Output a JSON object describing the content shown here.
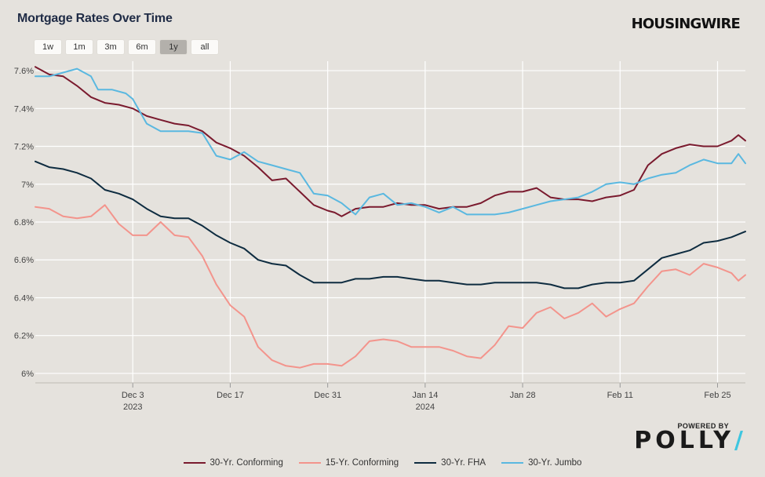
{
  "header": {
    "title": "Mortgage Rates Over Time",
    "brand": "HOUSINGWIRE"
  },
  "range_buttons": [
    {
      "label": "1w",
      "active": false
    },
    {
      "label": "1m",
      "active": false
    },
    {
      "label": "3m",
      "active": false
    },
    {
      "label": "6m",
      "active": false
    },
    {
      "label": "1y",
      "active": true
    },
    {
      "label": "all",
      "active": false
    }
  ],
  "footer": {
    "powered_by": "POWERED BY",
    "logo_text": "POLLY",
    "logo_slash": "/"
  },
  "chart_data": {
    "type": "line",
    "title": "Mortgage Rates Over Time",
    "xlabel": "",
    "ylabel": "",
    "x_range": [
      "2023-11-19",
      "2024-02-29"
    ],
    "ylim": [
      5.95,
      7.65
    ],
    "grid": true,
    "legend_position": "bottom",
    "y_ticks": [
      {
        "value": 6.0,
        "label": "6%"
      },
      {
        "value": 6.2,
        "label": "6.2%"
      },
      {
        "value": 6.4,
        "label": "6.4%"
      },
      {
        "value": 6.6,
        "label": "6.6%"
      },
      {
        "value": 6.8,
        "label": "6.8%"
      },
      {
        "value": 7.0,
        "label": "7%"
      },
      {
        "value": 7.2,
        "label": "7.2%"
      },
      {
        "value": 7.4,
        "label": "7.4%"
      },
      {
        "value": 7.6,
        "label": "7.6%"
      }
    ],
    "x_ticks": [
      {
        "date": "2023-12-03",
        "label": "Dec 3",
        "sublabel": "2023"
      },
      {
        "date": "2023-12-17",
        "label": "Dec 17",
        "sublabel": ""
      },
      {
        "date": "2023-12-31",
        "label": "Dec 31",
        "sublabel": ""
      },
      {
        "date": "2024-01-14",
        "label": "Jan 14",
        "sublabel": "2024"
      },
      {
        "date": "2024-01-28",
        "label": "Jan 28",
        "sublabel": ""
      },
      {
        "date": "2024-02-11",
        "label": "Feb 11",
        "sublabel": ""
      },
      {
        "date": "2024-02-25",
        "label": "Feb 25",
        "sublabel": ""
      }
    ],
    "series": [
      {
        "name": "30-Yr. Conforming",
        "color": "#7a1a2e",
        "points": [
          [
            "2023-11-19",
            7.62
          ],
          [
            "2023-11-21",
            7.58
          ],
          [
            "2023-11-23",
            7.57
          ],
          [
            "2023-11-25",
            7.52
          ],
          [
            "2023-11-27",
            7.46
          ],
          [
            "2023-11-29",
            7.43
          ],
          [
            "2023-12-01",
            7.42
          ],
          [
            "2023-12-03",
            7.4
          ],
          [
            "2023-12-05",
            7.36
          ],
          [
            "2023-12-07",
            7.34
          ],
          [
            "2023-12-09",
            7.32
          ],
          [
            "2023-12-11",
            7.31
          ],
          [
            "2023-12-13",
            7.28
          ],
          [
            "2023-12-15",
            7.22
          ],
          [
            "2023-12-17",
            7.19
          ],
          [
            "2023-12-19",
            7.15
          ],
          [
            "2023-12-21",
            7.09
          ],
          [
            "2023-12-23",
            7.02
          ],
          [
            "2023-12-25",
            7.03
          ],
          [
            "2023-12-27",
            6.96
          ],
          [
            "2023-12-29",
            6.89
          ],
          [
            "2023-12-31",
            6.86
          ],
          [
            "2024-01-01",
            6.85
          ],
          [
            "2024-01-02",
            6.83
          ],
          [
            "2024-01-04",
            6.87
          ],
          [
            "2024-01-06",
            6.88
          ],
          [
            "2024-01-08",
            6.88
          ],
          [
            "2024-01-10",
            6.9
          ],
          [
            "2024-01-12",
            6.89
          ],
          [
            "2024-01-14",
            6.89
          ],
          [
            "2024-01-16",
            6.87
          ],
          [
            "2024-01-18",
            6.88
          ],
          [
            "2024-01-20",
            6.88
          ],
          [
            "2024-01-22",
            6.9
          ],
          [
            "2024-01-24",
            6.94
          ],
          [
            "2024-01-26",
            6.96
          ],
          [
            "2024-01-28",
            6.96
          ],
          [
            "2024-01-30",
            6.98
          ],
          [
            "2024-02-01",
            6.93
          ],
          [
            "2024-02-03",
            6.92
          ],
          [
            "2024-02-05",
            6.92
          ],
          [
            "2024-02-07",
            6.91
          ],
          [
            "2024-02-09",
            6.93
          ],
          [
            "2024-02-11",
            6.94
          ],
          [
            "2024-02-13",
            6.97
          ],
          [
            "2024-02-15",
            7.1
          ],
          [
            "2024-02-17",
            7.16
          ],
          [
            "2024-02-19",
            7.19
          ],
          [
            "2024-02-21",
            7.21
          ],
          [
            "2024-02-23",
            7.2
          ],
          [
            "2024-02-25",
            7.2
          ],
          [
            "2024-02-27",
            7.23
          ],
          [
            "2024-02-28",
            7.26
          ],
          [
            "2024-02-29",
            7.23
          ]
        ]
      },
      {
        "name": "15-Yr. Conforming",
        "color": "#f3948c",
        "points": [
          [
            "2023-11-19",
            6.88
          ],
          [
            "2023-11-21",
            6.87
          ],
          [
            "2023-11-23",
            6.83
          ],
          [
            "2023-11-25",
            6.82
          ],
          [
            "2023-11-27",
            6.83
          ],
          [
            "2023-11-29",
            6.89
          ],
          [
            "2023-12-01",
            6.79
          ],
          [
            "2023-12-03",
            6.73
          ],
          [
            "2023-12-05",
            6.73
          ],
          [
            "2023-12-07",
            6.8
          ],
          [
            "2023-12-09",
            6.73
          ],
          [
            "2023-12-11",
            6.72
          ],
          [
            "2023-12-13",
            6.62
          ],
          [
            "2023-12-15",
            6.47
          ],
          [
            "2023-12-17",
            6.36
          ],
          [
            "2023-12-19",
            6.3
          ],
          [
            "2023-12-21",
            6.14
          ],
          [
            "2023-12-23",
            6.07
          ],
          [
            "2023-12-25",
            6.04
          ],
          [
            "2023-12-27",
            6.03
          ],
          [
            "2023-12-29",
            6.05
          ],
          [
            "2023-12-31",
            6.05
          ],
          [
            "2024-01-02",
            6.04
          ],
          [
            "2024-01-04",
            6.09
          ],
          [
            "2024-01-06",
            6.17
          ],
          [
            "2024-01-08",
            6.18
          ],
          [
            "2024-01-10",
            6.17
          ],
          [
            "2024-01-12",
            6.14
          ],
          [
            "2024-01-14",
            6.14
          ],
          [
            "2024-01-16",
            6.14
          ],
          [
            "2024-01-18",
            6.12
          ],
          [
            "2024-01-20",
            6.09
          ],
          [
            "2024-01-22",
            6.08
          ],
          [
            "2024-01-24",
            6.15
          ],
          [
            "2024-01-26",
            6.25
          ],
          [
            "2024-01-28",
            6.24
          ],
          [
            "2024-01-30",
            6.32
          ],
          [
            "2024-02-01",
            6.35
          ],
          [
            "2024-02-03",
            6.29
          ],
          [
            "2024-02-05",
            6.32
          ],
          [
            "2024-02-07",
            6.37
          ],
          [
            "2024-02-09",
            6.3
          ],
          [
            "2024-02-11",
            6.34
          ],
          [
            "2024-02-13",
            6.37
          ],
          [
            "2024-02-15",
            6.46
          ],
          [
            "2024-02-17",
            6.54
          ],
          [
            "2024-02-19",
            6.55
          ],
          [
            "2024-02-21",
            6.52
          ],
          [
            "2024-02-23",
            6.58
          ],
          [
            "2024-02-25",
            6.56
          ],
          [
            "2024-02-27",
            6.53
          ],
          [
            "2024-02-28",
            6.49
          ],
          [
            "2024-02-29",
            6.52
          ]
        ]
      },
      {
        "name": "30-Yr. FHA",
        "color": "#0e2c40",
        "points": [
          [
            "2023-11-19",
            7.12
          ],
          [
            "2023-11-21",
            7.09
          ],
          [
            "2023-11-23",
            7.08
          ],
          [
            "2023-11-25",
            7.06
          ],
          [
            "2023-11-27",
            7.03
          ],
          [
            "2023-11-29",
            6.97
          ],
          [
            "2023-12-01",
            6.95
          ],
          [
            "2023-12-03",
            6.92
          ],
          [
            "2023-12-05",
            6.87
          ],
          [
            "2023-12-07",
            6.83
          ],
          [
            "2023-12-09",
            6.82
          ],
          [
            "2023-12-11",
            6.82
          ],
          [
            "2023-12-13",
            6.78
          ],
          [
            "2023-12-15",
            6.73
          ],
          [
            "2023-12-17",
            6.69
          ],
          [
            "2023-12-19",
            6.66
          ],
          [
            "2023-12-21",
            6.6
          ],
          [
            "2023-12-23",
            6.58
          ],
          [
            "2023-12-25",
            6.57
          ],
          [
            "2023-12-27",
            6.52
          ],
          [
            "2023-12-29",
            6.48
          ],
          [
            "2023-12-31",
            6.48
          ],
          [
            "2024-01-02",
            6.48
          ],
          [
            "2024-01-04",
            6.5
          ],
          [
            "2024-01-06",
            6.5
          ],
          [
            "2024-01-08",
            6.51
          ],
          [
            "2024-01-10",
            6.51
          ],
          [
            "2024-01-12",
            6.5
          ],
          [
            "2024-01-14",
            6.49
          ],
          [
            "2024-01-16",
            6.49
          ],
          [
            "2024-01-18",
            6.48
          ],
          [
            "2024-01-20",
            6.47
          ],
          [
            "2024-01-22",
            6.47
          ],
          [
            "2024-01-24",
            6.48
          ],
          [
            "2024-01-26",
            6.48
          ],
          [
            "2024-01-28",
            6.48
          ],
          [
            "2024-01-30",
            6.48
          ],
          [
            "2024-02-01",
            6.47
          ],
          [
            "2024-02-03",
            6.45
          ],
          [
            "2024-02-05",
            6.45
          ],
          [
            "2024-02-07",
            6.47
          ],
          [
            "2024-02-09",
            6.48
          ],
          [
            "2024-02-11",
            6.48
          ],
          [
            "2024-02-13",
            6.49
          ],
          [
            "2024-02-15",
            6.55
          ],
          [
            "2024-02-17",
            6.61
          ],
          [
            "2024-02-19",
            6.63
          ],
          [
            "2024-02-21",
            6.65
          ],
          [
            "2024-02-23",
            6.69
          ],
          [
            "2024-02-25",
            6.7
          ],
          [
            "2024-02-27",
            6.72
          ],
          [
            "2024-02-29",
            6.75
          ]
        ]
      },
      {
        "name": "30-Yr. Jumbo",
        "color": "#5ab8e0",
        "points": [
          [
            "2023-11-19",
            7.57
          ],
          [
            "2023-11-21",
            7.57
          ],
          [
            "2023-11-23",
            7.59
          ],
          [
            "2023-11-25",
            7.61
          ],
          [
            "2023-11-27",
            7.57
          ],
          [
            "2023-11-28",
            7.5
          ],
          [
            "2023-11-30",
            7.5
          ],
          [
            "2023-12-02",
            7.48
          ],
          [
            "2023-12-03",
            7.45
          ],
          [
            "2023-12-05",
            7.32
          ],
          [
            "2023-12-07",
            7.28
          ],
          [
            "2023-12-09",
            7.28
          ],
          [
            "2023-12-11",
            7.28
          ],
          [
            "2023-12-13",
            7.27
          ],
          [
            "2023-12-15",
            7.15
          ],
          [
            "2023-12-17",
            7.13
          ],
          [
            "2023-12-19",
            7.17
          ],
          [
            "2023-12-21",
            7.12
          ],
          [
            "2023-12-23",
            7.1
          ],
          [
            "2023-12-25",
            7.08
          ],
          [
            "2023-12-27",
            7.06
          ],
          [
            "2023-12-29",
            6.95
          ],
          [
            "2023-12-31",
            6.94
          ],
          [
            "2024-01-02",
            6.9
          ],
          [
            "2024-01-04",
            6.84
          ],
          [
            "2024-01-06",
            6.93
          ],
          [
            "2024-01-08",
            6.95
          ],
          [
            "2024-01-10",
            6.89
          ],
          [
            "2024-01-12",
            6.9
          ],
          [
            "2024-01-14",
            6.88
          ],
          [
            "2024-01-16",
            6.85
          ],
          [
            "2024-01-18",
            6.88
          ],
          [
            "2024-01-20",
            6.84
          ],
          [
            "2024-01-22",
            6.84
          ],
          [
            "2024-01-24",
            6.84
          ],
          [
            "2024-01-26",
            6.85
          ],
          [
            "2024-01-28",
            6.87
          ],
          [
            "2024-01-30",
            6.89
          ],
          [
            "2024-02-01",
            6.91
          ],
          [
            "2024-02-03",
            6.92
          ],
          [
            "2024-02-05",
            6.93
          ],
          [
            "2024-02-07",
            6.96
          ],
          [
            "2024-02-09",
            7.0
          ],
          [
            "2024-02-11",
            7.01
          ],
          [
            "2024-02-13",
            7.0
          ],
          [
            "2024-02-15",
            7.03
          ],
          [
            "2024-02-17",
            7.05
          ],
          [
            "2024-02-19",
            7.06
          ],
          [
            "2024-02-21",
            7.1
          ],
          [
            "2024-02-23",
            7.13
          ],
          [
            "2024-02-25",
            7.11
          ],
          [
            "2024-02-27",
            7.11
          ],
          [
            "2024-02-28",
            7.16
          ],
          [
            "2024-02-29",
            7.11
          ]
        ]
      }
    ]
  }
}
